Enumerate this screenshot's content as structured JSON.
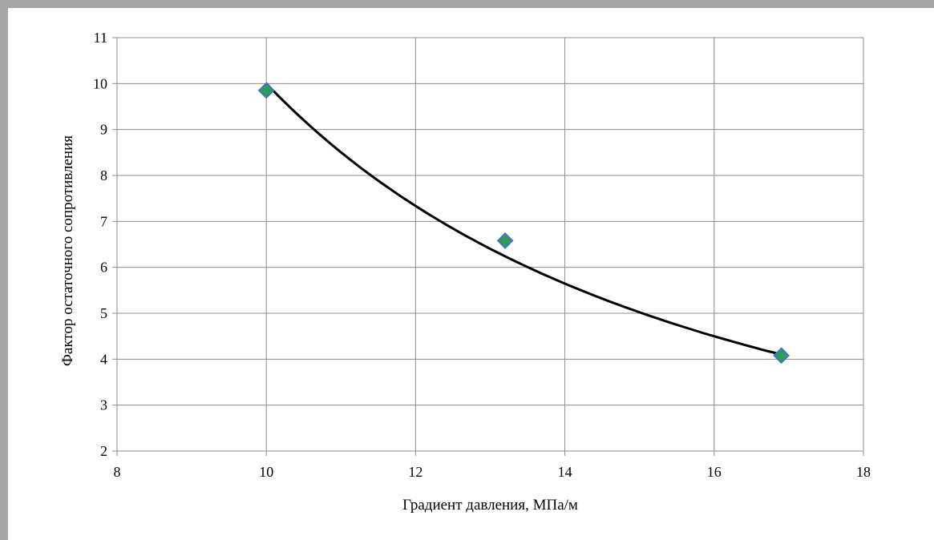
{
  "chart_data": {
    "type": "scatter",
    "title": "",
    "xlabel": "Градиент давления, МПа/м",
    "ylabel": "Фактор остаточного сопротивления",
    "xlim": [
      8,
      18
    ],
    "ylim": [
      2,
      11
    ],
    "xticks": [
      "8",
      "10",
      "12",
      "14",
      "16",
      "18"
    ],
    "yticks": [
      "2",
      "3",
      "4",
      "5",
      "6",
      "7",
      "8",
      "9",
      "10",
      "11"
    ],
    "grid": true,
    "legend": "none",
    "series": [
      {
        "marker": "diamond",
        "x": [
          10.0,
          13.2,
          16.9
        ],
        "y": [
          9.85,
          6.58,
          4.08
        ]
      }
    ],
    "trendline": {
      "type": "power",
      "x_range": [
        10.0,
        16.9
      ],
      "y_range": [
        10.0,
        4.1
      ]
    },
    "colors": {
      "marker_fill": "#2e9e55",
      "marker_edge": "#4472c4",
      "trendline": "#000000",
      "grid": "#8c8c8c",
      "frame": "#a6a6a6"
    }
  }
}
